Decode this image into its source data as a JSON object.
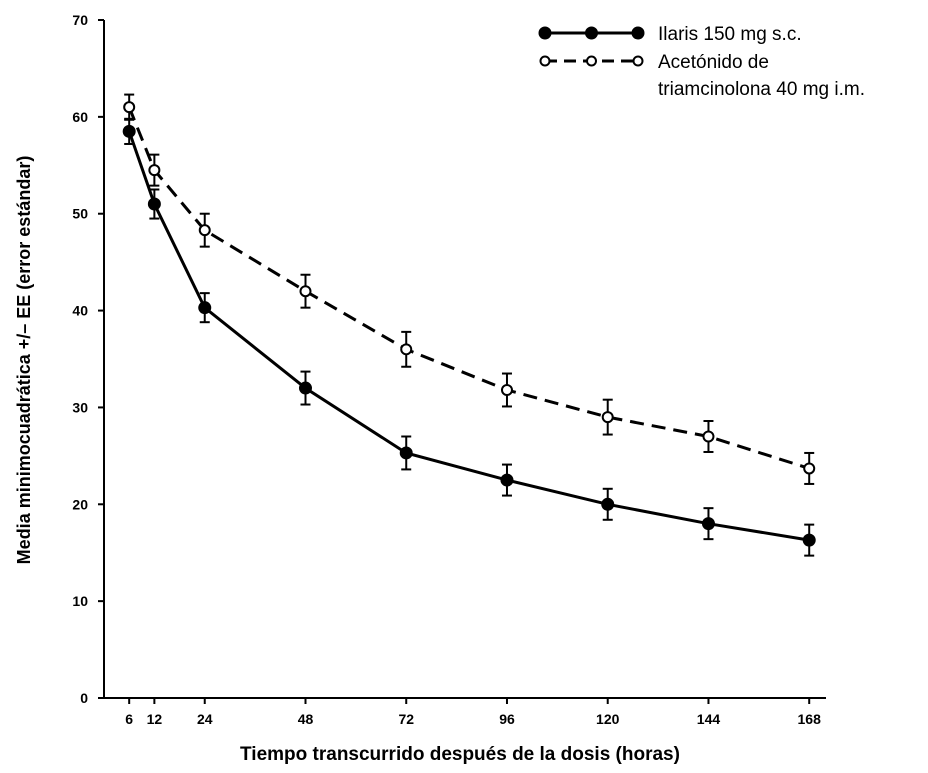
{
  "chart_data": {
    "type": "line",
    "title": "",
    "xlabel": "Tiempo transcurrido  después  de la dosis (horas)",
    "ylabel": "Media minimocuadrática +/– EE (error estándar)",
    "x": [
      6,
      12,
      24,
      48,
      72,
      96,
      120,
      144,
      168
    ],
    "x_ticks": [
      "6",
      "12",
      "24",
      "48",
      "72",
      "96",
      "120",
      "144",
      "168"
    ],
    "xlim": [
      0,
      172
    ],
    "ylim": [
      0,
      70
    ],
    "y_ticks": [
      "0",
      "10",
      "20",
      "30",
      "40",
      "50",
      "60",
      "70"
    ],
    "grid": false,
    "legend_position": "top-right",
    "series": [
      {
        "name": "Ilaris  150 mg s.c.",
        "style": "solid",
        "marker": "filled-circle",
        "color": "#000000",
        "values": [
          58.5,
          51.0,
          40.3,
          32.0,
          25.3,
          22.5,
          20.0,
          18.0,
          16.3
        ],
        "error": [
          1.3,
          1.5,
          1.5,
          1.7,
          1.7,
          1.6,
          1.6,
          1.6,
          1.6
        ]
      },
      {
        "name": "Acetónido de triamcinolona 40  mg i.m.",
        "name_lines": [
          "Acetónido de",
          "triamcinolona 40  mg i.m."
        ],
        "style": "dashed",
        "marker": "open-circle",
        "color": "#000000",
        "values": [
          61.0,
          54.5,
          48.3,
          42.0,
          36.0,
          31.8,
          29.0,
          27.0,
          23.7
        ],
        "error": [
          1.3,
          1.6,
          1.7,
          1.7,
          1.8,
          1.7,
          1.8,
          1.6,
          1.6
        ]
      }
    ]
  }
}
